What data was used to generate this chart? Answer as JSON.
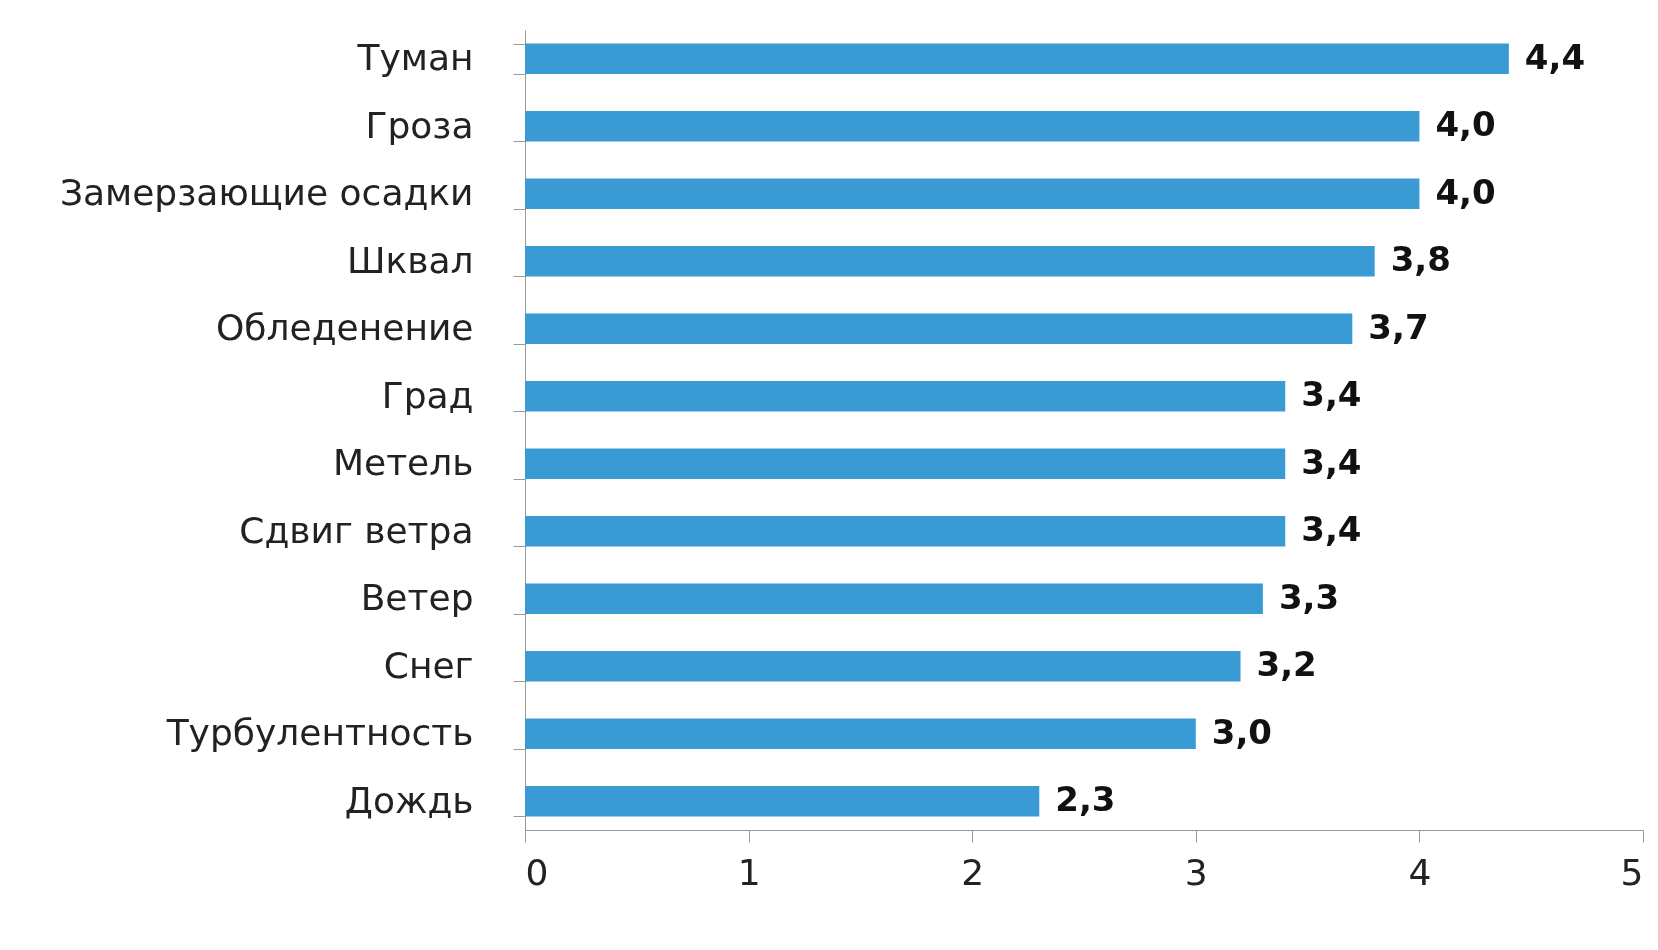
{
  "chart_data": {
    "type": "bar",
    "orientation": "horizontal",
    "categories": [
      "Туман",
      "Гроза",
      "Замерзающие осадки",
      "Шквал",
      "Обледенение",
      "Град",
      "Метель",
      "Сдвиг ветра",
      "Ветер",
      "Снег",
      "Турбулентность",
      "Дождь"
    ],
    "values": [
      4.4,
      4.0,
      4.0,
      3.8,
      3.7,
      3.4,
      3.4,
      3.4,
      3.3,
      3.2,
      3.0,
      2.3
    ],
    "value_labels": [
      "4,4",
      "4,0",
      "4,0",
      "3,8",
      "3,7",
      "3,4",
      "3,4",
      "3,4",
      "3,3",
      "3,2",
      "3,0",
      "2,3"
    ],
    "color": "#3a9ad3",
    "xlim": [
      0,
      5
    ],
    "xticks": [
      0,
      1,
      2,
      3,
      4,
      5
    ],
    "grid": false
  }
}
